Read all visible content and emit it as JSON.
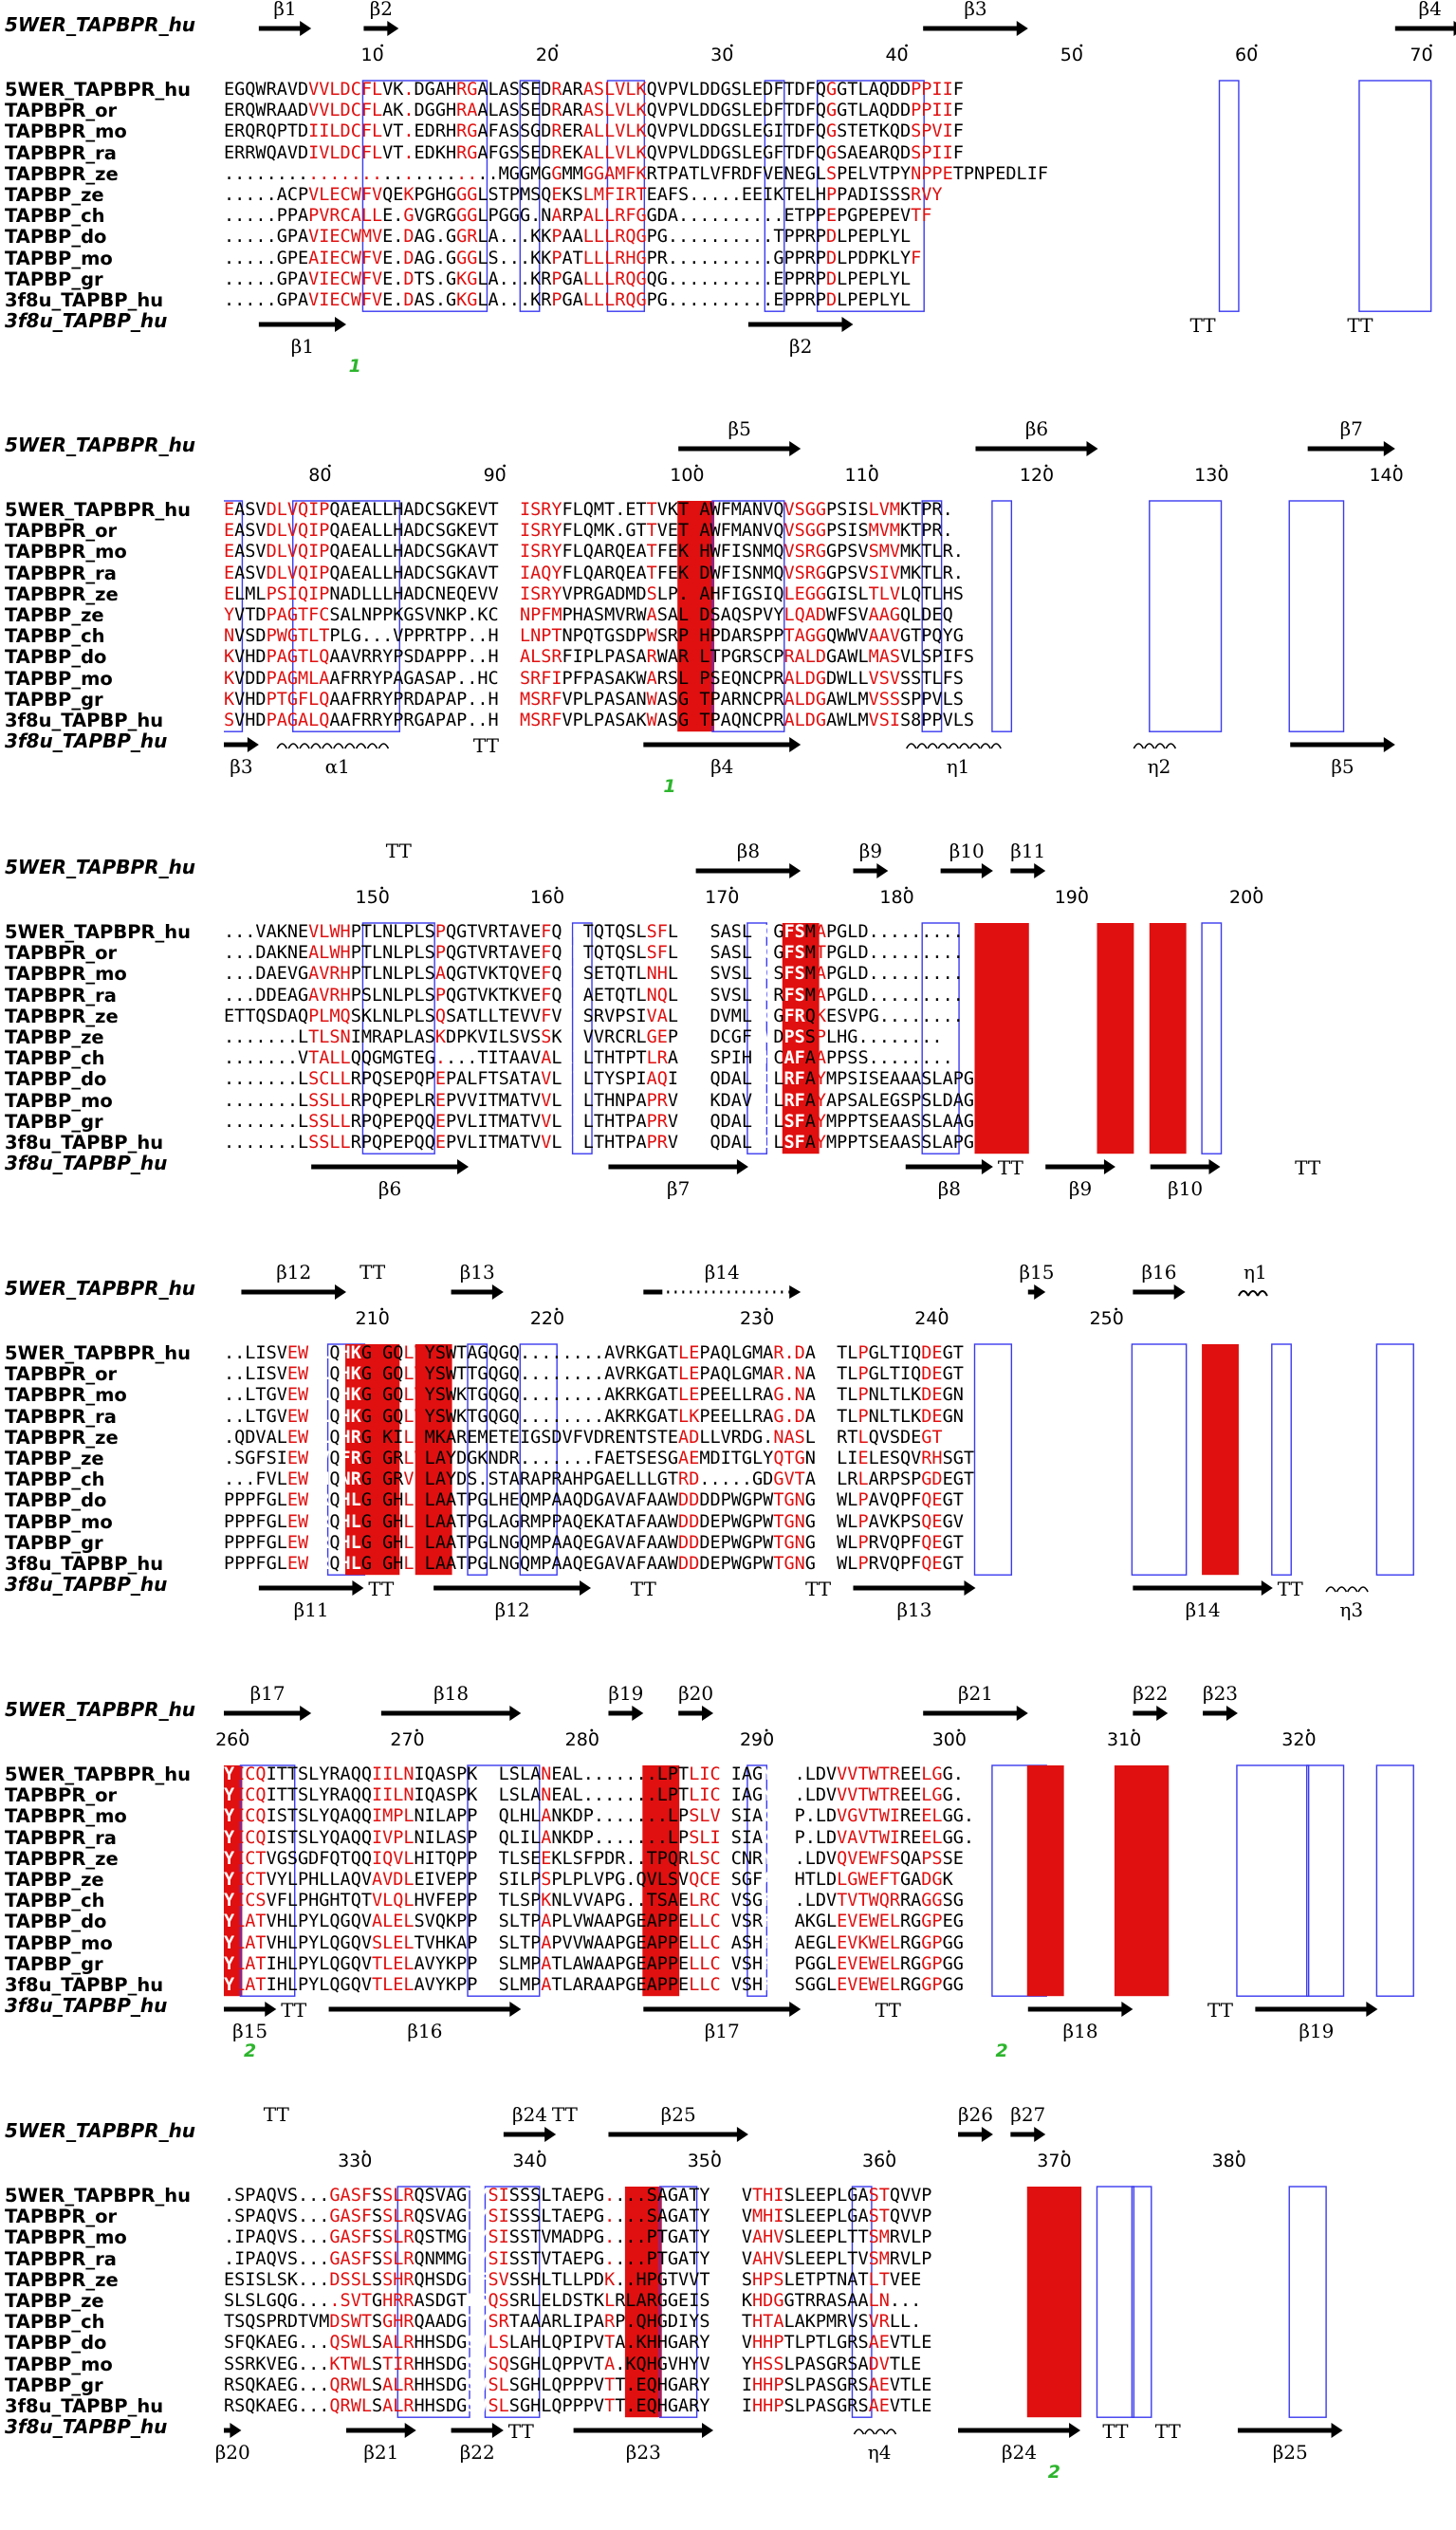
{
  "figure": {
    "blocks": [
      {
        "top_struct": {
          "label": "5WER_TAPBPR_hu"
        },
        "top_ss": [
          "β1",
          "β2",
          "β3",
          "β4"
        ],
        "numbers": [
          "10",
          "20",
          "30",
          "40",
          "50",
          "60",
          "70"
        ],
        "rows": [
          {
            "name": "5WER_TAPBPR_hu",
            "seq": "EGQWRAVDVVLDCFLVK.DGAHRGALASSEDRARASLVLKQVPVLDDGSLEDFTDFQGGTLAQDDPPIIF"
          },
          {
            "name": "TAPBPR_or",
            "seq": "ERQWRAADVVLDCFLAK.DGGHRAALASSEDRARASLVLKQVPVLDDGSLEDFTDFQGGTLAQDDPPIIF"
          },
          {
            "name": "TAPBPR_mo",
            "seq": "ERQRQPTDIILDCFLVT.EDRHRGAFASSGDRERALLVLKQVPVLDDGSLEGITDFQGSTETKQDSPVIF"
          },
          {
            "name": "TAPBPR_ra",
            "seq": "ERRWQAVDIVLDCFLVT.EDKHRGAFGSSEDREKALLVLKQVPVLDDGSLEGFTDFQGSAEARQDSPIIF"
          },
          {
            "name": "TAPBPR_ze",
            "seq": "..........................MGGMGGMMGGAMFKRTPATLVFRDFVENEGLSPELVTPYNPPETPNPEDLIF"
          },
          {
            "name": "TAPBP_ze",
            "seq": ".....ACPVLECWFVQEKPGHGGGLSTPMSQEKSLMFIRTEAFS.....EEIKTELHPPADISSSRVY"
          },
          {
            "name": "TAPBP_ch",
            "seq": ".....PPAPVRCALLE.GVGRGGGLPGGG.NARPALLRFGGDA..........ETPPEPGPEPEVTF"
          },
          {
            "name": "TAPBP_do",
            "seq": ".....GPAVIECWMVE.DAG.GGRLA...KKPAALLLRQGPG..........TPPRPDLPEPLYL"
          },
          {
            "name": "TAPBP_mo",
            "seq": ".....GPEAIECWFVE.DAG.GGGLS...KKPATLLLRHGPR..........GPPRPDLPDPKLYF"
          },
          {
            "name": "TAPBP_gr",
            "seq": ".....GPAVIECWFVE.DTS.GKGLA...KRPGALLLRQGQG..........EPPRPDLPEPLYL"
          },
          {
            "name": "3f8u_TAPBP_hu",
            "seq": ".....GPAVIECWFVE.DAS.GKGLA...KRPGALLLRQGPG..........EPPRPDLPEPLYL"
          }
        ],
        "bot_struct": {
          "label": "3f8u_TAPBP_hu"
        },
        "bot_ss": [
          "β1",
          "β2",
          "TT",
          "TT"
        ],
        "green": [
          "1"
        ]
      },
      {
        "top_struct": {
          "label": "5WER_TAPBPR_hu"
        },
        "top_ss": [
          "β5",
          "β6",
          "β7"
        ],
        "numbers": [
          "80",
          "90",
          "100",
          "110",
          "120",
          "130",
          "140"
        ],
        "rows": [
          {
            "name": "5WER_TAPBPR_hu",
            "seq": "EASVDLVQIPQAEALLHADCSGKEVTCEISRYFLQMT.ETTVKTAAWFMANVQVSGGPSISLVMKTPR."
          },
          {
            "name": "TAPBPR_or",
            "seq": "EASVDLVQIPQAEALLHADCSGKEVTCEISRYFLQMK.GTTVETAAWFMANVQVSGGPSISMVMKTPR."
          },
          {
            "name": "TAPBPR_mo",
            "seq": "EASVDLVQIPQAEALLHADCSGKAVTCEISRYFLQARQEATFEKAHWFISNMQVSRGGPSVSMVMKTLR."
          },
          {
            "name": "TAPBPR_ra",
            "seq": "EASVDLVQIPQAEALLHADCSGKAVTCEIAQYFLQARQEATFEKADWFISNMQVSRGGPSVSIVMKTLR."
          },
          {
            "name": "TAPBPR_ze",
            "seq": "ELMLPSIQIPNADLLLHADCNEQEVVCEISRYVPRGADMDSLP..AHFIGSIQLEGGGISLTLVLQTLHS"
          },
          {
            "name": "TAPBP_ze",
            "seq": "YVTDPAGTFCSALNPPKGSVNKP.KCEINPFMPHASMVRWASALTDSAQSPVYLQADWFSVAAGQLDEQ"
          },
          {
            "name": "TAPBP_ch",
            "seq": "NVSDPWGTLTPLG...VPPRTPP..HCELNPTNPQTGSDPWSRPLHPDARSPPTAGGQWWVAAVGTPQYG"
          },
          {
            "name": "TAPBP_do",
            "seq": "KVHDPAGTLQAAVRRYPSDAPPP..HCEALSRFIPLPASARWARGLTPGRSCPRALDGAWLMASVLSPIFS"
          },
          {
            "name": "TAPBP_mo",
            "seq": "KVDDPAGMLAAFRRYPAGASAP..HCEMSRFIPFPASAKWARSLTPSEQNCPRALDGDWLLVSVSSTLFS"
          },
          {
            "name": "TAPBP_gr",
            "seq": "KVHDPTGFLQAAFRRYPRDAPAP..HCEMSRFVPLPASANWASGLTPARNCPRALDGAWLMVSSSPPVLS"
          },
          {
            "name": "3f8u_TAPBP_hu",
            "seq": "SVHDPAGALQAAFRRYPRGAPAP..HCEMSRFVPLPASAKWASGLTPAQNCPRALDGAWLMVSIS8PPVLS"
          }
        ],
        "bot_struct": {
          "label": "3f8u_TAPBP_hu"
        },
        "bot_ss": [
          "β3",
          "α1",
          "TT",
          "β4",
          "η1",
          "η2",
          "β5"
        ],
        "green": [
          "1"
        ]
      },
      {
        "top_struct": {
          "label": "5WER_TAPBPR_hu"
        },
        "top_ss": [
          "TT",
          "β8",
          "β9",
          "β10",
          "β11"
        ],
        "numbers": [
          "150",
          "160",
          "170",
          "180",
          "190",
          "200"
        ],
        "rows": [
          {
            "name": "5WER_TAPBPR_hu",
            "seq": "...VAKNEVLWHPTLNLPLSPQGTVRTAVEFQVMTQTQSLSFLLGSSASLDCGFSMAPGLD........."
          },
          {
            "name": "TAPBPR_or",
            "seq": "...DAKNEALWHPTLNLPLSPQGTVRTAVEFQVMTQTQSLSFLLGSSASLDCGFSMTPGLD........."
          },
          {
            "name": "TAPBPR_mo",
            "seq": "...DAEVGAVRHPTLNLPLSAQGTVKTQVEFQVTSETQTLNHLLGSSVSLHCSFSMAPGLD........."
          },
          {
            "name": "TAPBPR_ra",
            "seq": "...DDEAGAVRHPSLNLPLSPQGTVKTKVEFQVTAETQTLNQLLGSSVSLPCRFSMAPGLD........."
          },
          {
            "name": "TAPBPR_ze",
            "seq": "ETTQSDAQPLMQSKLNLPLSQSATLLTEVVFVVFSRVPSIVALIGGDVMLDCGFRQKESVPG........"
          },
          {
            "name": "TAPBP_ze",
            "seq": ".......LTLSNIMRAPLASKDPKVILSVSSKTPVVRCRLGEPVLLDCGFWVDPSSPLHG........"
          },
          {
            "name": "TAPBP_ch",
            "seq": ".......VTALLQQGMGTEG....TITAAVALAVLTHTPTLRARVGSPIHLHCAFAAPPSS........"
          },
          {
            "name": "TAPBP_do",
            "seq": ".......LSCLLRPQSEPQPEPALFTSATAVLTVLTYSPIAQIQLGQDALLDLRFAYMPSISEAAASLAPG"
          },
          {
            "name": "TAPBP_mo",
            "seq": ".......LSSLLRPQPEPLREPVVITMATVVLTVLTHNPAPRVQLGKDAVLDLRFAYAPSALEGSPSLDAG"
          },
          {
            "name": "TAPBP_gr",
            "seq": ".......LSSLLRPQPEPQQEPVLITMATVVLTVLTHTPAPRVRLGQDALLDLSFAYMPPTSEAASSLAAG"
          },
          {
            "name": "3f8u_TAPBP_hu",
            "seq": ".......LSSLLRPQPEPQQEPVLITMATVVLTVLTHTPAPRVRLGQDALLDLSFAYMPPTSEAASSLAPG"
          }
        ],
        "bot_struct": {
          "label": "3f8u_TAPBP_hu"
        },
        "bot_ss": [
          "β6",
          "β7",
          "β8",
          "TT",
          "β9",
          "β10",
          "TT"
        ],
        "green": []
      },
      {
        "top_struct": {
          "label": "5WER_TAPBPR_hu"
        },
        "top_ss": [
          "β12",
          "TT",
          "β13",
          "β14",
          "β15",
          "β16",
          "η1"
        ],
        "numbers": [
          "210",
          "220",
          "230",
          "240",
          "250"
        ],
        "rows": [
          {
            "name": "5WER_TAPBPR_hu",
            "seq": "..LISVEWRLQHKGRGQLVYSWTAGQGQ........AVRKGATLEPAQLGMAR.DASLTLPGLTIQDEGT"
          },
          {
            "name": "TAPBPR_or",
            "seq": "..LISVEWRLQHKGRGQLVYSWTTGQGQ........AVRKGATLEPAQLGMAR.NASLTLPGLTIQDEGT"
          },
          {
            "name": "TAPBPR_mo",
            "seq": "..LTGVEWRLQHKGSGQLVYSWKTGQGQ........AKRKGATLEPEELLRAG.NASLTLPNLTLKDEGN"
          },
          {
            "name": "TAPBPR_ra",
            "seq": "..LTGVEWRLQHKGSGQLVYSWKTGQGQ........AKRKGATLKPEELLRAG.DASLTLPNLTLKDEGN"
          },
          {
            "name": "TAPBPR_ze",
            "seq": ".QDVALEWRLQHRGRKILDMKAREMETEIGSDVFVDRENTSTEADLLVRDG.NASLTLRTLQVSDEGT"
          },
          {
            "name": "TAPBP_ze",
            "seq": ".SGFSIEWRVQFRGEGRLVLAYDGKNDR.......FAETSESGAEMDITGLYQTGNVSLIELESQVRHSGT"
          },
          {
            "name": "TAPBP_ch",
            "seq": "...FVLEWRHQNRGAGRVLLAYDS.STARAPRAHPGAELLLGTRD.....GDGVTAVTLRLARPSPGDEGT"
          },
          {
            "name": "TAPBP_do",
            "seq": "PPPFGLEWRRQHLGKGHLLLAATPGLHEQMPAAQDGAVAFAAWDDDDPWGPWTGNGTLWLPAVQPFQEGT"
          },
          {
            "name": "TAPBP_mo",
            "seq": "PPPFGLEWRRQHLGKGHLLLAATPGLAGRMPPAQEKATAFAAWDDDEPWGPWTGNGTFWLPAVKPSQEGV"
          },
          {
            "name": "TAPBP_gr",
            "seq": "PPPFGLEWRRQHLGKGHLLLAATPGLNGQMPAAQEGAVAFAAWDDDEPWGPWTGNGTFWLPRVQPFQEGT"
          },
          {
            "name": "3f8u_TAPBP_hu",
            "seq": "PPPFGLEWRRQHLGKGHLLLAATPGLNGQMPAAQEGAVAFAAWDDDEPWGPWTGNGTFWLPRVQPFQEGT"
          }
        ],
        "bot_struct": {
          "label": "3f8u_TAPBP_hu"
        },
        "bot_ss": [
          "β11",
          "TT",
          "β12",
          "TT",
          "TT",
          "β13",
          "β14",
          "TT",
          "η3"
        ],
        "green": []
      },
      {
        "top_struct": {
          "label": "5WER_TAPBPR_hu"
        },
        "top_ss": [
          "β17",
          "β18",
          "β19",
          "β20",
          "β21",
          "β22",
          "β23"
        ],
        "numbers": [
          "260",
          "270",
          "280",
          "290",
          "300",
          "310",
          "320"
        ],
        "rows": [
          {
            "name": "5WER_TAPBPR_hu",
            "seq": "YICQITTSLYRAQQIILNIQASPKVRLSLANEAL.......LPTLICDIAGYYP.LDVVVTWTREELGG."
          },
          {
            "name": "TAPBPR_or",
            "seq": "YICQITTSLYRAQQIILNIQASPKVRLSLANEAL.......LPTLICDIAGYYP.LDVVVTWTREELGG."
          },
          {
            "name": "TAPBPR_mo",
            "seq": "YICQISTSLYQAQQIMPLNILAPPKIQLHLANKDP.......LPSLVCSIAGYYP.LDVGVTWIREELGG."
          },
          {
            "name": "TAPBPR_ra",
            "seq": "YICQISTSLYQAQQIVPLNILASPKVQLILANKDP.......LPSLICSIAGYYP.LDVAVTWIREELGG."
          },
          {
            "name": "TAPBPR_ze",
            "seq": "YICTVGSGDFQTQQIQVLHITQPPRITLSEEKLSFPDR..TPQRLSCHCNRYYP.LDVQVEWFSQAPSSE"
          },
          {
            "name": "TAPBP_ze",
            "seq": "YICTVYLPHLLAQVAVDLEIVEPPSLSILPSPLPLVPG.QVLSVQCEASGFAP.HTLDLGWEFTGADGK"
          },
          {
            "name": "TAPBP_ch",
            "seq": "YICSVFLPHGHTQTVLQLHVFEPPKVTLSPKNLVVAPG..TSAELRCHVSGFYP.LDVTVTWQRRAGGSG"
          },
          {
            "name": "TAPBP_do",
            "seq": "YLATVHLPYLQGQVALELSVQKPPKISLTPAPLVWAAPGEAPPELLCLVSRFYPAKGLEVEWELRGGPEG"
          },
          {
            "name": "TAPBP_mo",
            "seq": "YLATVHLPYLQGQVSLELTVHKAPRVSLTPAPVVWAAPGEAPPELLCLASHFFPAEGLEVKWELRGGPGG"
          },
          {
            "name": "TAPBP_gr",
            "seq": "YLATIHLPYLQGQVTLELAVYKPPKVSLMPATLAWAAPGEAPPELLCLVSHFYPPGGLEVEWELRGGPGG"
          },
          {
            "name": "3f8u_TAPBP_hu",
            "seq": "YLATIHLPYLQGQVTLELAVYKPPKVSLMPATLARAAPGEAPPELLCLVSHFYPSGGLEVEWELRGGPGG"
          }
        ],
        "bot_struct": {
          "label": "3f8u_TAPBP_hu"
        },
        "bot_ss": [
          "β15",
          "TT",
          "β16",
          "β17",
          "TT",
          "β18",
          "TT",
          "β19"
        ],
        "green": [
          "2",
          "2"
        ]
      },
      {
        "top_struct": {
          "label": "5WER_TAPBPR_hu"
        },
        "top_ss": [
          "TT",
          "β24",
          "TT",
          "β25",
          "β26",
          "β27"
        ],
        "numbers": [
          "330",
          "340",
          "350",
          "360",
          "370",
          "380"
        ],
        "rows": [
          {
            "name": "5WER_TAPBPR_hu",
            "seq": ".SPAQVS...GASFSSLRQSVAGTYSISSSLTAEPG....SAGATYTCQVTHISLEEPLGASTQVVP"
          },
          {
            "name": "TAPBPR_or",
            "seq": ".SPAQVS...GASFSSLRQSVAGTYSISSSLTAEPG....SAGATYTCQVMHISLEEPLGASTQVVP"
          },
          {
            "name": "TAPBPR_mo",
            "seq": ".IPAQVS...GASFSSLRQSTMGTYSISSTVMADPG....PTGATYTCQVAHVSLEEPLTTSMRVLP"
          },
          {
            "name": "TAPBPR_ra",
            "seq": ".IPAQVS...GASFSSLRQNMMGTYSISSTVTAEPG....PTGATYTCQVAHVSLEEPLTVSMRVLP"
          },
          {
            "name": "TAPBPR_ze",
            "seq": "ESISLSK...DSSLSSHRQHSDGTFSVSSHLTLLPDK..HPGTVVTCRVSHPSLETPTNATLTVEE"
          },
          {
            "name": "TAPBP_ze",
            "seq": "SLSLGQG....SVTGHRRASDGTFSQSSRLELDSTKLRLARGGEISCVAKHDGGTRRASAALN..."
          },
          {
            "name": "TAPBP_ch",
            "seq": "TSQSPRDTVMDSWTSGHRQAADGTYSRTAAARLIPARP.QHGDIYSCVVTHTALAKPMRVSVRLL."
          },
          {
            "name": "TAPBP_do",
            "seq": "SFQKAEG...QSWLSALRHHSDGSVLSLAHLQPIPVTA.KHHGARYACRVHHPTLPTLGRSAEVTLE"
          },
          {
            "name": "TAPBP_mo",
            "seq": "SSRKVEG...KTWLSTIRHHSDGSVSQSGHLQPPVTA.KQHGVHYVCRVYHSSLPASGRSADVTLE"
          },
          {
            "name": "TAPBP_gr",
            "seq": "RSQKAEG...QRWLSALRHHSDGSVSLSGHLQPPPVTT.EQHGARYACRIHHPSLPASGRSAEVTLE"
          },
          {
            "name": "3f8u_TAPBP_hu",
            "seq": "RSQKAEG...QRWLSALRHHSDGSVSLSGHLQPPPVTT.EQHGARYACRIHHPSLPASGRSAEVTLE"
          }
        ],
        "bot_struct": {
          "label": "3f8u_TAPBP_hu"
        },
        "bot_ss": [
          "β20",
          "β21",
          "β22",
          "TT",
          "β23",
          "η4",
          "β24",
          "TT",
          "TT",
          "β25"
        ],
        "green": [
          "2"
        ]
      }
    ]
  }
}
